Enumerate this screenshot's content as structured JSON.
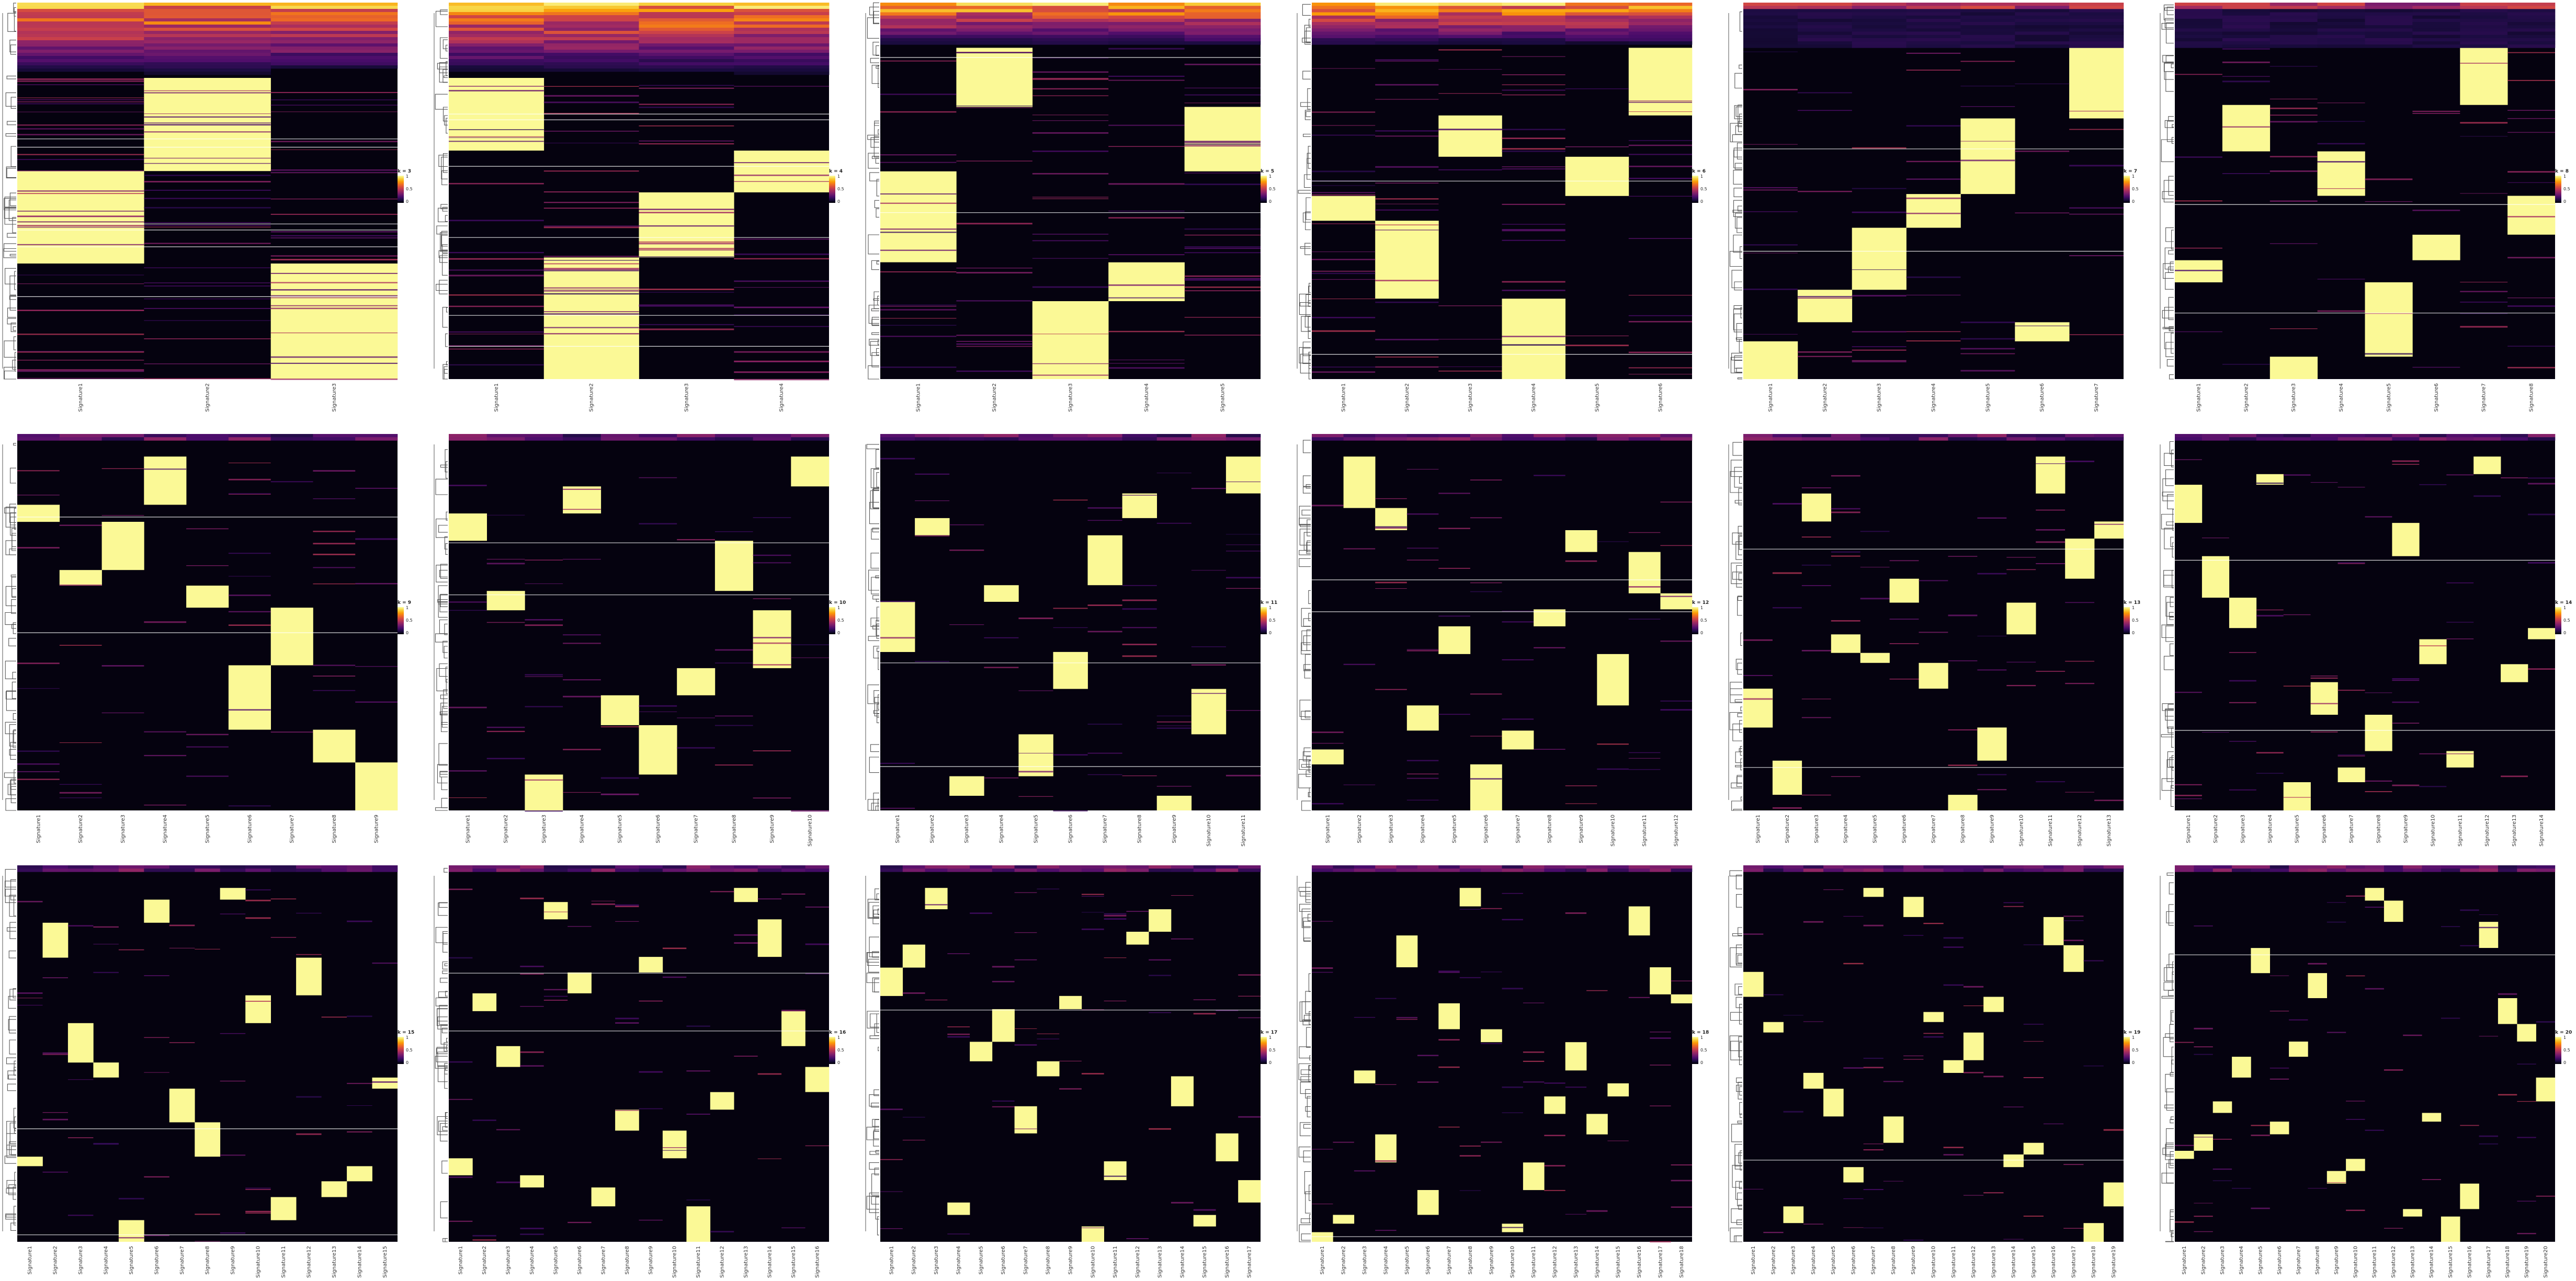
{
  "figure": {
    "colormap": {
      "name": "inferno",
      "stops": [
        "#000004",
        "#1b0c41",
        "#4a0c6b",
        "#781c6d",
        "#a52c60",
        "#cf4446",
        "#ed6925",
        "#fb9b06",
        "#f7d13d",
        "#fcffa4"
      ],
      "tick_labels": [
        "1",
        "0.5",
        "0"
      ]
    },
    "divider_color": "#ffffff",
    "dendrogram_color": "#555555",
    "text_color": "#333333"
  },
  "chart_data": [
    {
      "type": "heatmap",
      "panel": 1,
      "legend_title": "k = 3",
      "k": 3,
      "columns": [
        "Signature1",
        "Signature2",
        "Signature3"
      ]
    },
    {
      "type": "heatmap",
      "panel": 2,
      "legend_title": "k = 4",
      "k": 4,
      "columns": [
        "Signature1",
        "Signature2",
        "Signature3",
        "Signature4"
      ]
    },
    {
      "type": "heatmap",
      "panel": 3,
      "legend_title": "k = 5",
      "k": 5,
      "columns": [
        "Signature1",
        "Signature2",
        "Signature3",
        "Signature4",
        "Signature5"
      ]
    },
    {
      "type": "heatmap",
      "panel": 4,
      "legend_title": "k = 6",
      "k": 6,
      "columns": [
        "Signature1",
        "Signature2",
        "Signature3",
        "Signature4",
        "Signature5",
        "Signature6"
      ]
    },
    {
      "type": "heatmap",
      "panel": 5,
      "legend_title": "k = 7",
      "k": 7,
      "columns": [
        "Signature1",
        "Signature2",
        "Signature3",
        "Signature4",
        "Signature5",
        "Signature6",
        "Signature7"
      ]
    },
    {
      "type": "heatmap",
      "panel": 6,
      "legend_title": "k = 8",
      "k": 8,
      "columns": [
        "Signature1",
        "Signature2",
        "Signature3",
        "Signature4",
        "Signature5",
        "Signature6",
        "Signature7",
        "Signature8"
      ]
    },
    {
      "type": "heatmap",
      "panel": 7,
      "legend_title": "k = 9",
      "k": 9,
      "columns": [
        "Signature1",
        "Signature2",
        "Signature3",
        "Signature4",
        "Signature5",
        "Signature6",
        "Signature7",
        "Signature8",
        "Signature9"
      ]
    },
    {
      "type": "heatmap",
      "panel": 8,
      "legend_title": "k = 10",
      "k": 10,
      "columns": [
        "Signature1",
        "Signature2",
        "Signature3",
        "Signature4",
        "Signature5",
        "Signature6",
        "Signature7",
        "Signature8",
        "Signature9",
        "Signature10"
      ]
    },
    {
      "type": "heatmap",
      "panel": 9,
      "legend_title": "k = 11",
      "k": 11,
      "columns": [
        "Signature1",
        "Signature2",
        "Signature3",
        "Signature4",
        "Signature5",
        "Signature6",
        "Signature7",
        "Signature8",
        "Signature9",
        "Signature10",
        "Signature11"
      ]
    },
    {
      "type": "heatmap",
      "panel": 10,
      "legend_title": "k = 12",
      "k": 12,
      "columns": [
        "Signature1",
        "Signature2",
        "Signature3",
        "Signature4",
        "Signature5",
        "Signature6",
        "Signature7",
        "Signature8",
        "Signature9",
        "Signature10",
        "Signature11",
        "Signature12"
      ]
    },
    {
      "type": "heatmap",
      "panel": 11,
      "legend_title": "k = 13",
      "k": 13,
      "columns": [
        "Signature1",
        "Signature2",
        "Signature3",
        "Signature4",
        "Signature5",
        "Signature6",
        "Signature7",
        "Signature8",
        "Signature9",
        "Signature10",
        "Signature11",
        "Signature12",
        "Signature13"
      ]
    },
    {
      "type": "heatmap",
      "panel": 12,
      "legend_title": "k = 14",
      "k": 14,
      "columns": [
        "Signature1",
        "Signature2",
        "Signature3",
        "Signature4",
        "Signature5",
        "Signature6",
        "Signature7",
        "Signature8",
        "Signature9",
        "Signature10",
        "Signature11",
        "Signature12",
        "Signature13",
        "Signature14"
      ]
    },
    {
      "type": "heatmap",
      "panel": 13,
      "legend_title": "k = 15",
      "k": 15,
      "columns": [
        "Signature1",
        "Signature2",
        "Signature3",
        "Signature4",
        "Signature5",
        "Signature6",
        "Signature7",
        "Signature8",
        "Signature9",
        "Signature10",
        "Signature11",
        "Signature12",
        "Signature13",
        "Signature14",
        "Signature15"
      ]
    },
    {
      "type": "heatmap",
      "panel": 14,
      "legend_title": "k = 16",
      "k": 16,
      "columns": [
        "Signature1",
        "Signature2",
        "Signature3",
        "Signature4",
        "Signature5",
        "Signature6",
        "Signature7",
        "Signature8",
        "Signature9",
        "Signature10",
        "Signature11",
        "Signature12",
        "Signature13",
        "Signature14",
        "Signature15",
        "Signature16"
      ]
    },
    {
      "type": "heatmap",
      "panel": 15,
      "legend_title": "k = 17",
      "k": 17,
      "columns": [
        "Signature1",
        "Signature2",
        "Signature3",
        "Signature4",
        "Signature5",
        "Signature6",
        "Signature7",
        "Signature8",
        "Signature9",
        "Signature10",
        "Signature11",
        "Signature12",
        "Signature13",
        "Signature14",
        "Signature15",
        "Signature16",
        "Signature17"
      ]
    },
    {
      "type": "heatmap",
      "panel": 16,
      "legend_title": "k = 18",
      "k": 18,
      "columns": [
        "Signature1",
        "Signature2",
        "Signature3",
        "Signature4",
        "Signature5",
        "Signature6",
        "Signature7",
        "Signature8",
        "Signature9",
        "Signature10",
        "Signature11",
        "Signature12",
        "Signature13",
        "Signature14",
        "Signature15",
        "Signature16",
        "Signature17",
        "Signature18"
      ]
    },
    {
      "type": "heatmap",
      "panel": 17,
      "legend_title": "k = 19",
      "k": 19,
      "columns": [
        "Signature1",
        "Signature2",
        "Signature3",
        "Signature4",
        "Signature5",
        "Signature6",
        "Signature7",
        "Signature8",
        "Signature9",
        "Signature10",
        "Signature11",
        "Signature12",
        "Signature13",
        "Signature14",
        "Signature15",
        "Signature16",
        "Signature17",
        "Signature18",
        "Signature19"
      ]
    },
    {
      "type": "heatmap",
      "panel": 18,
      "legend_title": "k = 20",
      "k": 20,
      "columns": [
        "Signature1",
        "Signature2",
        "Signature3",
        "Signature4",
        "Signature5",
        "Signature6",
        "Signature7",
        "Signature8",
        "Signature9",
        "Signature10",
        "Signature11",
        "Signature12",
        "Signature13",
        "Signature14",
        "Signature15",
        "Signature16",
        "Signature17",
        "Signature18",
        "Signature19",
        "Signature20"
      ]
    }
  ]
}
